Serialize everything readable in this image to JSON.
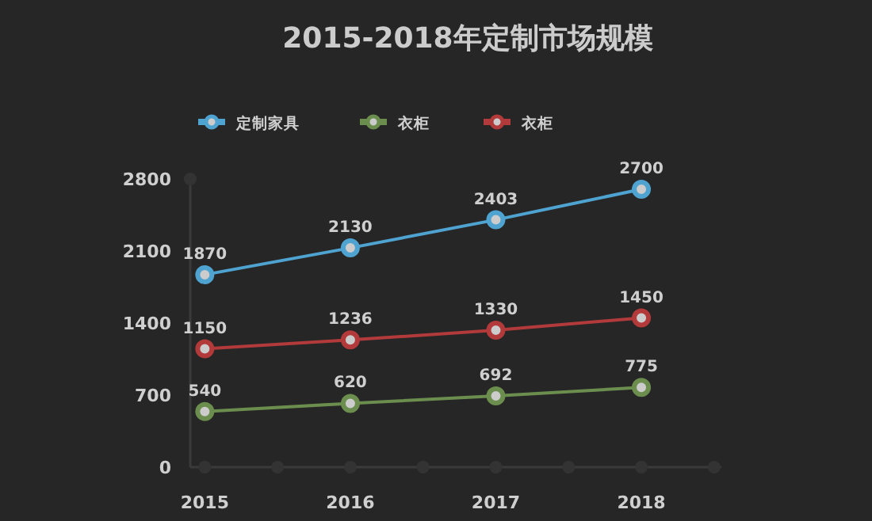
{
  "chart_data": {
    "type": "line",
    "title": "2015-2018年定制市场规模",
    "x": [
      2015,
      2016,
      2017,
      2018
    ],
    "series": [
      {
        "name": "定制家具",
        "color": "#4fa3d1",
        "values": [
          1870,
          2130,
          2403,
          2700
        ]
      },
      {
        "name": "衣柜",
        "color": "#6b8e4e",
        "values": [
          540,
          620,
          692,
          775
        ]
      },
      {
        "name": "衣柜",
        "color": "#b23a3a",
        "values": [
          1150,
          1236,
          1330,
          1450
        ]
      }
    ],
    "xlim": [
      2014.9,
      2018.55
    ],
    "xticks": [
      2015,
      {
        "value": 2015.5,
        "label": null
      },
      2016,
      {
        "value": 2016.5,
        "label": null
      },
      2017,
      {
        "value": 2017.5,
        "label": null
      },
      2018,
      {
        "value": 2018.5,
        "label": null
      }
    ],
    "ylim": [
      0,
      2800
    ],
    "yticks": [
      0,
      700,
      1400,
      2100,
      2800
    ],
    "data_labels": true,
    "legend": "top left",
    "marker": "circle",
    "line_style": "solid",
    "grid": false
  }
}
